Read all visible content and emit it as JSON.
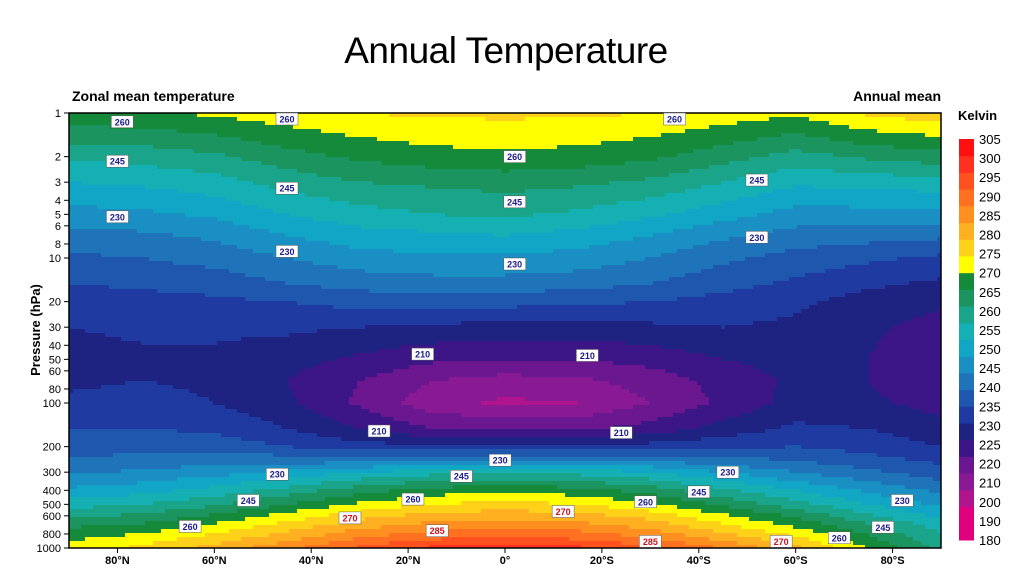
{
  "slide": {
    "title": "Annual Temperature"
  },
  "chart_data": {
    "type": "heatmap",
    "title": "Zonal mean temperature",
    "subtitle": "Annual mean",
    "xlabel": "",
    "ylabel": "Pressure (hPa)",
    "x_axis": {
      "ticks": [
        "80°N",
        "60°N",
        "40°N",
        "20°N",
        "0°",
        "20°S",
        "40°S",
        "60°S",
        "80°S"
      ],
      "latitudes": [
        80,
        60,
        40,
        20,
        0,
        -20,
        -40,
        -60,
        -80
      ],
      "range": [
        90,
        -90
      ]
    },
    "y_axis": {
      "scale": "log",
      "reversed": true,
      "range": [
        1,
        1000
      ],
      "ticks": [
        1,
        2,
        3,
        4,
        5,
        6,
        8,
        10,
        20,
        30,
        40,
        50,
        60,
        80,
        100,
        200,
        300,
        400,
        500,
        600,
        800,
        1000
      ],
      "tick_labels": [
        "1",
        "2",
        "3",
        "4",
        "5",
        "6",
        "8",
        "10",
        "20",
        "30",
        "40",
        "50",
        "60",
        "80",
        "100",
        "200",
        "300",
        "400",
        "500",
        "600",
        "800",
        "1000"
      ]
    },
    "colorbar": {
      "title": "Kelvin",
      "levels": [
        180,
        185,
        190,
        195,
        200,
        205,
        210,
        215,
        220,
        225,
        230,
        235,
        240,
        245,
        250,
        255,
        260,
        265,
        270,
        275,
        280,
        285,
        290,
        295,
        300,
        305
      ],
      "tick_labels": [
        "180",
        "190",
        "200",
        "210",
        "220",
        "225",
        "230",
        "235",
        "240",
        "245",
        "250",
        "255",
        "260",
        "265",
        "270",
        "275",
        "280",
        "285",
        "290",
        "295",
        "300",
        "305"
      ],
      "colors": [
        "#e0007f",
        "#e0007f",
        "#b0158e",
        "#8a1a93",
        "#6b1890",
        "#3c1687",
        "#1e2280",
        "#1f3aa0",
        "#1f56ae",
        "#1f73b8",
        "#1a8fc4",
        "#12a6c6",
        "#15b0b3",
        "#1aa58a",
        "#1b9460",
        "#148a3a",
        "#ffff00",
        "#ffd21a",
        "#ffb020",
        "#ff9020",
        "#ff7020",
        "#ff5020",
        "#ff3020",
        "#ff1010"
      ]
    },
    "field": {
      "latitudes": [
        90,
        75,
        60,
        45,
        30,
        15,
        0,
        -15,
        -30,
        -45,
        -60,
        -75,
        -90
      ],
      "pressures": [
        1,
        2,
        3,
        5,
        7,
        10,
        15,
        20,
        30,
        50,
        70,
        100,
        150,
        200,
        250,
        300,
        400,
        500,
        600,
        700,
        850,
        1000
      ],
      "temperatures_K": [
        [
          259,
          259,
          261,
          263,
          265,
          266,
          266,
          266,
          265,
          263,
          261,
          266,
          268
        ],
        [
          246,
          247,
          249,
          253,
          256,
          258,
          259,
          258,
          256,
          252,
          248,
          251,
          253
        ],
        [
          240,
          241,
          243,
          247,
          250,
          251,
          252,
          251,
          249,
          245,
          241,
          242,
          243
        ],
        [
          233,
          234,
          236,
          240,
          243,
          245,
          246,
          244,
          241,
          237,
          233,
          233,
          233
        ],
        [
          228,
          229,
          231,
          235,
          238,
          239,
          240,
          238,
          235,
          231,
          228,
          227,
          226
        ],
        [
          224,
          225,
          227,
          230,
          233,
          234,
          234,
          233,
          230,
          226,
          223,
          221,
          219
        ],
        [
          220,
          221,
          222,
          225,
          227,
          228,
          228,
          227,
          225,
          222,
          219,
          216,
          214
        ],
        [
          217,
          218,
          219,
          220,
          222,
          222,
          222,
          221,
          220,
          218,
          216,
          213,
          211
        ],
        [
          215,
          216,
          216,
          216,
          215,
          214,
          213,
          213,
          214,
          215,
          214,
          211,
          208
        ],
        [
          213,
          214,
          214,
          212,
          209,
          206,
          205,
          205,
          207,
          210,
          212,
          210,
          206
        ],
        [
          214,
          215,
          214,
          210,
          205,
          200,
          198,
          199,
          202,
          207,
          211,
          210,
          206
        ],
        [
          216,
          217,
          215,
          211,
          204,
          197,
          194,
          195,
          200,
          206,
          212,
          211,
          208
        ],
        [
          220,
          220,
          219,
          215,
          210,
          205,
          204,
          204,
          207,
          212,
          216,
          215,
          212
        ],
        [
          222,
          223,
          223,
          220,
          217,
          216,
          216,
          216,
          217,
          219,
          220,
          218,
          215
        ],
        [
          226,
          227,
          228,
          228,
          228,
          229,
          230,
          230,
          229,
          227,
          225,
          222,
          219
        ],
        [
          229,
          231,
          233,
          236,
          240,
          243,
          244,
          243,
          240,
          235,
          230,
          226,
          222
        ],
        [
          236,
          238,
          242,
          247,
          253,
          257,
          259,
          257,
          253,
          246,
          240,
          234,
          229
        ],
        [
          243,
          245,
          249,
          255,
          261,
          265,
          267,
          265,
          261,
          254,
          247,
          240,
          234
        ],
        [
          249,
          251,
          256,
          262,
          268,
          272,
          273,
          272,
          268,
          261,
          254,
          246,
          239
        ],
        [
          254,
          256,
          261,
          267,
          273,
          277,
          278,
          277,
          273,
          266,
          259,
          251,
          243
        ],
        [
          259,
          262,
          267,
          273,
          280,
          284,
          285,
          284,
          280,
          273,
          266,
          256,
          246
        ],
        [
          262,
          266,
          272,
          279,
          286,
          291,
          293,
          291,
          286,
          280,
          271,
          260,
          248
        ]
      ]
    },
    "contour_labels": [
      {
        "text": "260",
        "lat": 79,
        "p": 1.15
      },
      {
        "text": "260",
        "lat": 45,
        "p": 1.1
      },
      {
        "text": "260",
        "lat": -35,
        "p": 1.1
      },
      {
        "text": "260",
        "lat": -2,
        "p": 2.0
      },
      {
        "text": "245",
        "lat": 80,
        "p": 2.15
      },
      {
        "text": "245",
        "lat": -2,
        "p": 4.1
      },
      {
        "text": "245",
        "lat": 45,
        "p": 3.3
      },
      {
        "text": "245",
        "lat": -52,
        "p": 2.9
      },
      {
        "text": "230",
        "lat": 80,
        "p": 5.2
      },
      {
        "text": "230",
        "lat": 45,
        "p": 9.0
      },
      {
        "text": "230",
        "lat": -2,
        "p": 11.0
      },
      {
        "text": "230",
        "lat": -52,
        "p": 7.2
      },
      {
        "text": "210",
        "lat": 17,
        "p": 46
      },
      {
        "text": "210",
        "lat": -17,
        "p": 47
      },
      {
        "text": "210",
        "lat": 26,
        "p": 156
      },
      {
        "text": "210",
        "lat": -24,
        "p": 160
      },
      {
        "text": "230",
        "lat": 1,
        "p": 248
      },
      {
        "text": "230",
        "lat": 47,
        "p": 310
      },
      {
        "text": "230",
        "lat": -46,
        "p": 300
      },
      {
        "text": "230",
        "lat": -82,
        "p": 470
      },
      {
        "text": "245",
        "lat": 9,
        "p": 320
      },
      {
        "text": "245",
        "lat": 53,
        "p": 470
      },
      {
        "text": "245",
        "lat": -40,
        "p": 410
      },
      {
        "text": "245",
        "lat": -78,
        "p": 720
      },
      {
        "text": "260",
        "lat": 19,
        "p": 460
      },
      {
        "text": "260",
        "lat": -29,
        "p": 480
      },
      {
        "text": "260",
        "lat": 65,
        "p": 710
      },
      {
        "text": "260",
        "lat": -69,
        "p": 850
      },
      {
        "text": "270",
        "lat": 32,
        "p": 620
      },
      {
        "text": "270",
        "lat": -12,
        "p": 560
      },
      {
        "text": "270",
        "lat": -57,
        "p": 900
      },
      {
        "text": "285",
        "lat": 14,
        "p": 760
      },
      {
        "text": "285",
        "lat": -30,
        "p": 900
      }
    ]
  }
}
